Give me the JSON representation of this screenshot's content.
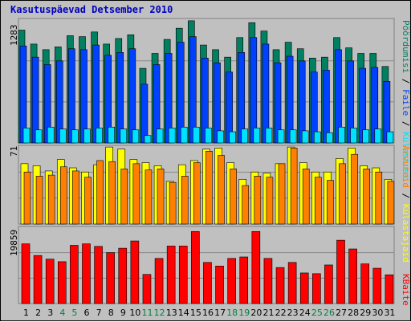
{
  "chart_data": {
    "type": "bar",
    "title": "Kasutuspäevad Detsember 2010",
    "categories": [
      "1",
      "2",
      "3",
      "4",
      "5",
      "6",
      "7",
      "8",
      "9",
      "10",
      "11",
      "12",
      "13",
      "14",
      "15",
      "16",
      "17",
      "18",
      "19",
      "20",
      "21",
      "22",
      "23",
      "24",
      "25",
      "26",
      "27",
      "28",
      "29",
      "30",
      "31"
    ],
    "weekend_days": [
      "4",
      "5",
      "11",
      "12",
      "18",
      "19",
      "25",
      "26"
    ],
    "panels": [
      {
        "ymax_label": "1283",
        "ymax": 1283,
        "series": [
          {
            "name": "Pöördumisi",
            "color": "#008060",
            "values": [
              1210,
              1060,
              1000,
              1030,
              1150,
              1140,
              1190,
              1060,
              1120,
              1160,
              800,
              960,
              1110,
              1230,
              1310,
              1050,
              1000,
              920,
              1130,
              1290,
              1200,
              1000,
              1080,
              1010,
              910,
              920,
              1130,
              1020,
              960,
              960,
              820
            ]
          },
          {
            "name": "Faile",
            "color": "#0040ff",
            "values": [
              1040,
              920,
              840,
              880,
              1010,
              1000,
              1050,
              940,
              970,
              1010,
              630,
              840,
              960,
              1080,
              1140,
              910,
              860,
              760,
              970,
              1130,
              1060,
              860,
              930,
              880,
              760,
              780,
              1000,
              880,
              800,
              810,
              660
            ]
          },
          {
            "name": "Külastusi",
            "color": "#00e0ff",
            "values": [
              160,
              140,
              170,
              150,
              140,
              150,
              160,
              170,
              150,
              140,
              80,
              150,
              160,
              170,
              170,
              160,
              130,
              120,
              150,
              160,
              160,
              140,
              140,
              130,
              120,
              110,
              170,
              160,
              140,
              150,
              120
            ]
          }
        ]
      },
      {
        "ymax_label": "71",
        "ymax": 71,
        "series": [
          {
            "name": "Külastajaid",
            "color": "#ffff00",
            "values": [
              58,
              56,
              51,
              62,
              54,
              50,
              57,
              74,
              72,
              62,
              59,
              56,
              41,
              57,
              61,
              72,
              73,
              59,
              43,
              50,
              49,
              58,
              74,
              59,
              50,
              50,
              63,
              73,
              56,
              54,
              43
            ]
          },
          {
            "name": "Arvuteid",
            "color": "#ff8000",
            "values": [
              50,
              46,
              47,
              55,
              51,
              45,
              61,
              60,
              53,
              58,
              52,
              53,
              40,
              46,
              59,
              70,
              66,
              53,
              37,
              46,
              45,
              58,
              73,
              53,
              45,
              42,
              58,
              67,
              53,
              50,
              41
            ]
          }
        ]
      },
      {
        "ymax_label": "19859",
        "ymax": 19859,
        "series": [
          {
            "name": "KBaite",
            "color": "#ff0000",
            "values": [
              16400,
              13200,
              12200,
              11500,
              16000,
              16400,
              15700,
              14000,
              15200,
              17200,
              8000,
              12400,
              15800,
              15800,
              19800,
              11300,
              10300,
              12400,
              12800,
              19800,
              12400,
              9900,
              11300,
              8400,
              8200,
              10600,
              17400,
              15000,
              10900,
              9700,
              7900
            ]
          }
        ]
      }
    ],
    "right_labels": {
      "top": [
        {
          "text": "Pöördumisi",
          "color": "#008060"
        },
        {
          "text": " / ",
          "color": "#000000"
        },
        {
          "text": "Faile",
          "color": "#0040ff"
        },
        {
          "text": " / ",
          "color": "#000000"
        },
        {
          "text": "Külastusi",
          "color": "#00e0ff"
        }
      ],
      "middle": [
        {
          "text": "Arvuteid",
          "color": "#ff8000"
        },
        {
          "text": " / ",
          "color": "#000000"
        },
        {
          "text": "Külastajaid",
          "color": "#ffff00"
        }
      ],
      "bottom": [
        {
          "text": "KBaite",
          "color": "#ff0000"
        }
      ]
    },
    "colors": {
      "background": "#c0c0c0",
      "weekday_label": "#000000",
      "weekend_label": "#008040",
      "title": "#0000c0"
    }
  }
}
